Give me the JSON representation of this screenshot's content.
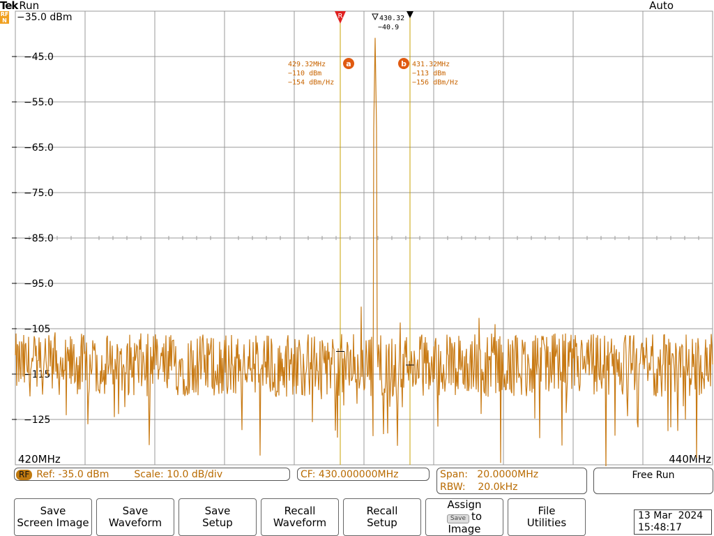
{
  "header": {
    "logo": "Tek",
    "status": "Run",
    "trigger_mode": "Auto",
    "rf_badge_line1": "RF",
    "rf_badge_line2": "N"
  },
  "graticule": {
    "y_labels": [
      "-35.0 dBm",
      "-45.0",
      "-55.0",
      "-65.0",
      "-75.0",
      "-85.0",
      "-95.0",
      "-105",
      "-115",
      "-125"
    ],
    "x_start": "420MHz",
    "x_stop": "440MHz"
  },
  "markers": {
    "ref_marker_label": "R",
    "peak_readout_freq": "430.32",
    "peak_readout_level": "-40.9",
    "cursor_a": {
      "badge": "a",
      "freq": "429.32MHz",
      "level": "-110 dBm",
      "density": "-154 dBm/Hz"
    },
    "cursor_b": {
      "badge": "b",
      "freq": "431.32MHz",
      "level": "-113 dBm",
      "density": "-156 dBm/Hz"
    }
  },
  "status": {
    "rf_chip": "RF",
    "ref": "Ref: -35.0 dBm",
    "scale": "Scale: 10.0 dB/div",
    "cf": "CF:  430.000000MHz",
    "span": "Span:   20.0000MHz",
    "rbw": "RBW:    20.0kHz",
    "free_run": "Free Run"
  },
  "menu": {
    "save_screen_image": [
      "Save",
      "Screen Image"
    ],
    "save_waveform": [
      "Save",
      "Waveform"
    ],
    "save_setup": [
      "Save",
      "Setup"
    ],
    "recall_waveform": [
      "Recall",
      "Waveform"
    ],
    "recall_setup": [
      "Recall",
      "Setup"
    ],
    "assign": {
      "line1": "Assign",
      "mini": "Save",
      "to": "to",
      "line3": "Image"
    },
    "file_utilities": [
      "File",
      "Utilities"
    ]
  },
  "clock": {
    "date": "13 Mar  2024",
    "time": "15:48:17"
  },
  "colors": {
    "trace": "#c87a14",
    "cursor": "#c8a000",
    "marker": "#e02020",
    "grid": "#999999"
  },
  "chart_data": {
    "type": "line",
    "xlabel": "",
    "ylabel": "",
    "xlim": [
      420,
      440
    ],
    "ylim": [
      -135,
      -35
    ],
    "x_unit": "MHz",
    "y_unit": "dBm",
    "peaks": [
      {
        "x": 429.32,
        "y": -110
      },
      {
        "x": 430.32,
        "y": -40.9
      },
      {
        "x": 431.32,
        "y": -113
      }
    ],
    "noise_floor": -113
  }
}
